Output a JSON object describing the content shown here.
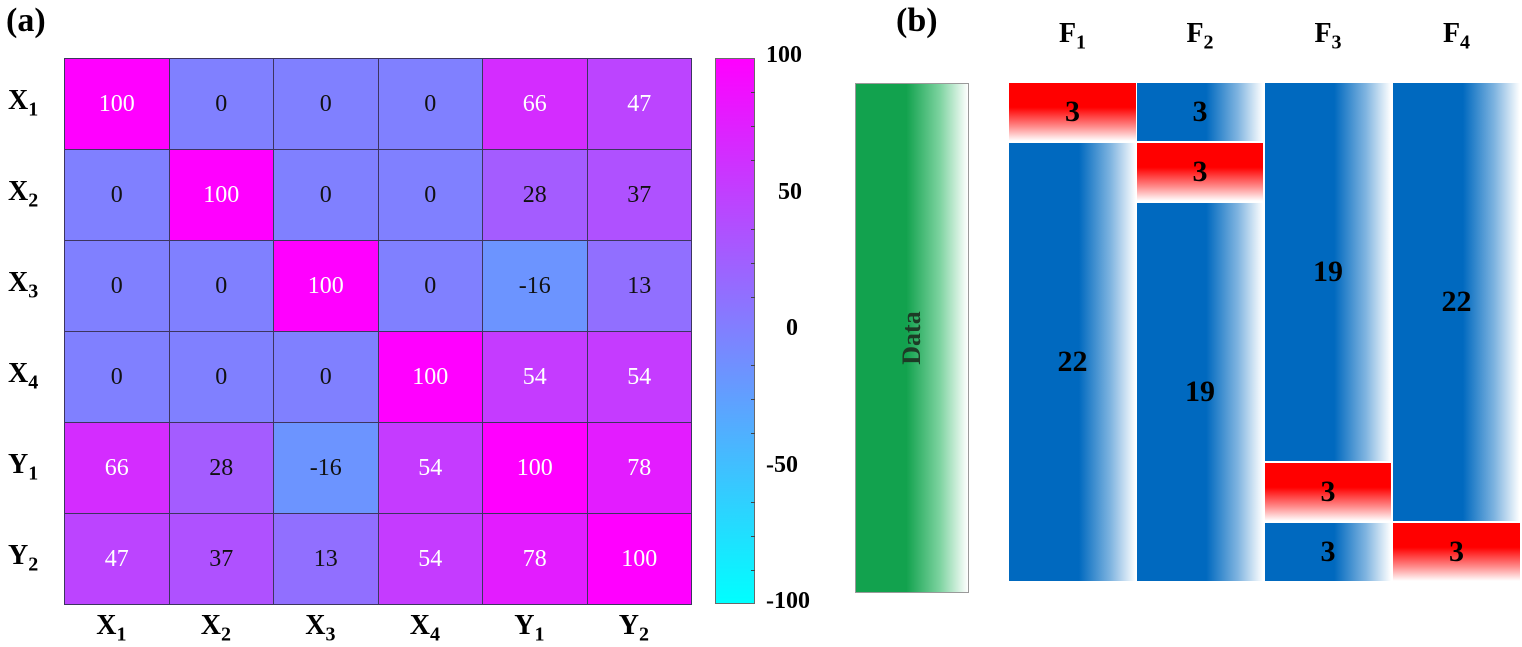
{
  "panel_a": {
    "label": "(a)"
  },
  "panel_b": {
    "label": "(b)"
  },
  "chart_data": [
    {
      "type": "heatmap",
      "rows": [
        "X1",
        "X2",
        "X3",
        "X4",
        "Y1",
        "Y2"
      ],
      "columns": [
        "X1",
        "X2",
        "X3",
        "X4",
        "Y1",
        "Y2"
      ],
      "values": [
        [
          100,
          0,
          0,
          0,
          66,
          47
        ],
        [
          0,
          100,
          0,
          0,
          28,
          37
        ],
        [
          0,
          0,
          100,
          0,
          -16,
          13
        ],
        [
          0,
          0,
          0,
          100,
          54,
          54
        ],
        [
          66,
          28,
          -16,
          54,
          100,
          78
        ],
        [
          47,
          37,
          13,
          54,
          78,
          100
        ]
      ],
      "colorbar": {
        "range": [
          -100,
          100
        ],
        "ticks": [
          "100",
          "50",
          "0",
          "-50",
          "-100"
        ],
        "colors": {
          "min": "#00ffff",
          "mid": "#8080ff",
          "max": "#ff00ff"
        }
      }
    },
    {
      "type": "table",
      "data_label": "Data",
      "folds": [
        {
          "name": "F1",
          "blocks": [
            {
              "value": "3",
              "role": "test",
              "size": 3
            },
            {
              "value": "22",
              "role": "train",
              "size": 22
            }
          ]
        },
        {
          "name": "F2",
          "blocks": [
            {
              "value": "3",
              "role": "train",
              "size": 3
            },
            {
              "value": "3",
              "role": "test",
              "size": 3
            },
            {
              "value": "19",
              "role": "train",
              "size": 19
            }
          ]
        },
        {
          "name": "F3",
          "blocks": [
            {
              "value": "19",
              "role": "train",
              "size": 19
            },
            {
              "value": "3",
              "role": "test",
              "size": 3
            },
            {
              "value": "3",
              "role": "train",
              "size": 3
            }
          ]
        },
        {
          "name": "F4",
          "blocks": [
            {
              "value": "22",
              "role": "train",
              "size": 22
            },
            {
              "value": "3",
              "role": "test",
              "size": 3
            }
          ]
        }
      ],
      "colors": {
        "train": "#0069bf",
        "test": "#ff0000",
        "data": "#12a24e"
      }
    }
  ]
}
